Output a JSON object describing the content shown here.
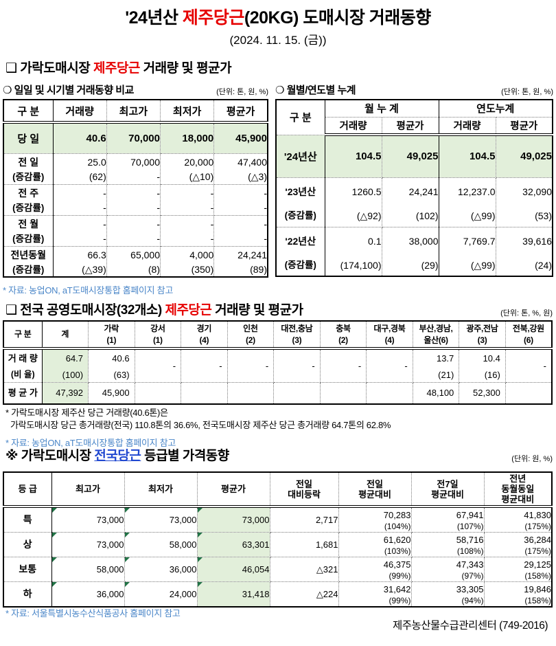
{
  "colors": {
    "accent_red": "#e60000",
    "link_blue": "#4a86c8",
    "heading_blue": "#2048d0",
    "highlight_green": "#e2efda",
    "triangle_green": "#217346"
  },
  "page": {
    "title_prefix": "'24년산 ",
    "title_red": "제주당근",
    "title_suffix": "(20KG) 도매시장 거래동향",
    "subtitle": "(2024. 11. 15. (금))",
    "footer_org": "제주농산물수급관리센터 (749-2016)"
  },
  "section1": {
    "heading_prefix": "❑ 가락도매시장 ",
    "heading_red": "제주당근",
    "heading_suffix": " 거래량 및 평균가",
    "daily": {
      "subheading": "❍ 일일 및 시기별 거래동향 비교",
      "unit": "(단위: 톤, 원, %)",
      "columns": [
        "구  분",
        "거래량",
        "최고가",
        "최저가",
        "평균가"
      ],
      "highlight_row": {
        "label": "당  일",
        "values": [
          "40.6",
          "70,000",
          "18,000",
          "45,900"
        ]
      },
      "rows": [
        {
          "label": "전  일",
          "sub": "(증감률)",
          "values": [
            "25.0",
            "70,000",
            "20,000",
            "47,400"
          ],
          "subs": [
            "(62)",
            "-",
            "(△10)",
            "(△3)"
          ]
        },
        {
          "label": "전  주",
          "sub": "(증감률)",
          "values": [
            "-",
            "-",
            "-",
            "-"
          ],
          "subs": [
            "-",
            "-",
            "-",
            "-"
          ]
        },
        {
          "label": "전  월",
          "sub": "(증감률)",
          "values": [
            "-",
            "-",
            "-",
            "-"
          ],
          "subs": [
            "-",
            "-",
            "-",
            "-"
          ]
        },
        {
          "label": "전년동월",
          "sub": "(증감률)",
          "values": [
            "66.3",
            "65,000",
            "4,000",
            "24,241"
          ],
          "subs": [
            "(△39)",
            "(8)",
            "(350)",
            "(89)"
          ]
        }
      ],
      "source": "* 자료: 농업ON, aT도매시장통합 홈페이지 참고"
    },
    "cumulative": {
      "subheading": "❍ 월별/연도별 누계",
      "unit": "(단위: 톤, 원, %)",
      "label_col": "구  분",
      "col_group1": "월 누 계",
      "col_group2": "연도누계",
      "sub_columns": [
        "거래량",
        "평균가",
        "거래량",
        "평균가"
      ],
      "highlight_row": {
        "label": "'24년산",
        "values": [
          "104.5",
          "49,025",
          "104.5",
          "49,025"
        ]
      },
      "rows": [
        {
          "label": "'23년산",
          "sub": "(증감률)",
          "values": [
            "1260.5",
            "24,241",
            "12,237.0",
            "32,090"
          ],
          "subs": [
            "(△92)",
            "(102)",
            "(△99)",
            "(53)"
          ]
        },
        {
          "label": "'22년산",
          "sub": "(증감률)",
          "values": [
            "0.1",
            "38,000",
            "7,769.7",
            "39,616"
          ],
          "subs": [
            "(174,100)",
            "(29)",
            "(△99)",
            "(24)"
          ]
        }
      ]
    }
  },
  "section2": {
    "heading_prefix": "❑ 전국 공영도매시장(32개소) ",
    "heading_red": "제주당근",
    "heading_suffix": " 거래량 및 평균가",
    "unit": "(단위: 톤, %, 원)",
    "label_col": "구  분",
    "columns": [
      {
        "name": "계",
        "count": ""
      },
      {
        "name": "가락",
        "count": "(1)"
      },
      {
        "name": "강서",
        "count": "(1)"
      },
      {
        "name": "경기",
        "count": "(4)"
      },
      {
        "name": "인천",
        "count": "(2)"
      },
      {
        "name": "대전,충남",
        "count": "(3)"
      },
      {
        "name": "충북",
        "count": "(2)"
      },
      {
        "name": "대구,경북",
        "count": "(4)"
      },
      {
        "name": "부산,경남,",
        "count": "울산(6)"
      },
      {
        "name": "광주,전남",
        "count": "(3)"
      },
      {
        "name": "전북,강원",
        "count": "(6)"
      }
    ],
    "volume_row": {
      "label": "거 래 량",
      "sub_label": "(비 율)",
      "values": [
        "64.7",
        "40.6",
        "",
        "",
        "",
        "",
        "",
        "",
        "13.7",
        "10.4",
        ""
      ],
      "subs": [
        "(100)",
        "(63)",
        "-",
        "-",
        "-",
        "-",
        "-",
        "-",
        "(21)",
        "(16)",
        "-"
      ]
    },
    "price_row": {
      "label": "평 균 가",
      "values": [
        "47,392",
        "45,900",
        "",
        "",
        "",
        "",
        "",
        "",
        "48,100",
        "52,300",
        ""
      ]
    },
    "note_line1": "* 가락도매시장 제주산 당근 거래량(40.6톤)은",
    "note_line2": "가락도매시장 당근 총거래량(전국) 110.8톤의 36.6%, 전국도매시장 제주산 당근 총거래량 64.7톤의 62.8%",
    "source": "* 자료: 농업ON, aT도매시장통합 홈페이지 참고"
  },
  "section3": {
    "heading_prefix": "※ 가락도매시장 ",
    "heading_blue": "전국당근",
    "heading_suffix": " 등급별 가격동향",
    "unit": "(단위: 원, %)",
    "columns": [
      [
        "등  급"
      ],
      [
        "최고가"
      ],
      [
        "최저가"
      ],
      [
        "평균가"
      ],
      [
        "전일",
        "대비등락"
      ],
      [
        "전일",
        "평균대비"
      ],
      [
        "전7일",
        "평균대비"
      ],
      [
        "전년",
        "동월동일",
        "평균대비"
      ]
    ],
    "rows": [
      {
        "grade": "특",
        "high": "73,000",
        "low": "73,000",
        "avg": "73,000",
        "change": "2,717",
        "vs_prev": "70,283",
        "vs_prev_pct": "(104%)",
        "vs_7d": "67,941",
        "vs_7d_pct": "(107%)",
        "vs_yr": "41,830",
        "vs_yr_pct": "(175%)"
      },
      {
        "grade": "상",
        "high": "73,000",
        "low": "58,000",
        "avg": "63,301",
        "change": "1,681",
        "vs_prev": "61,620",
        "vs_prev_pct": "(103%)",
        "vs_7d": "58,716",
        "vs_7d_pct": "(108%)",
        "vs_yr": "36,284",
        "vs_yr_pct": "(175%)"
      },
      {
        "grade": "보통",
        "high": "58,000",
        "low": "36,000",
        "avg": "46,054",
        "change": "△321",
        "vs_prev": "46,375",
        "vs_prev_pct": "(99%)",
        "vs_7d": "47,343",
        "vs_7d_pct": "(97%)",
        "vs_yr": "29,125",
        "vs_yr_pct": "(158%)"
      },
      {
        "grade": "하",
        "high": "36,000",
        "low": "24,000",
        "avg": "31,418",
        "change": "△224",
        "vs_prev": "31,642",
        "vs_prev_pct": "(99%)",
        "vs_7d": "33,305",
        "vs_7d_pct": "(94%)",
        "vs_yr": "19,846",
        "vs_yr_pct": "(158%)"
      }
    ],
    "source": "* 자료: 서울특별시농수산식품공사 홈페이지 참고"
  }
}
